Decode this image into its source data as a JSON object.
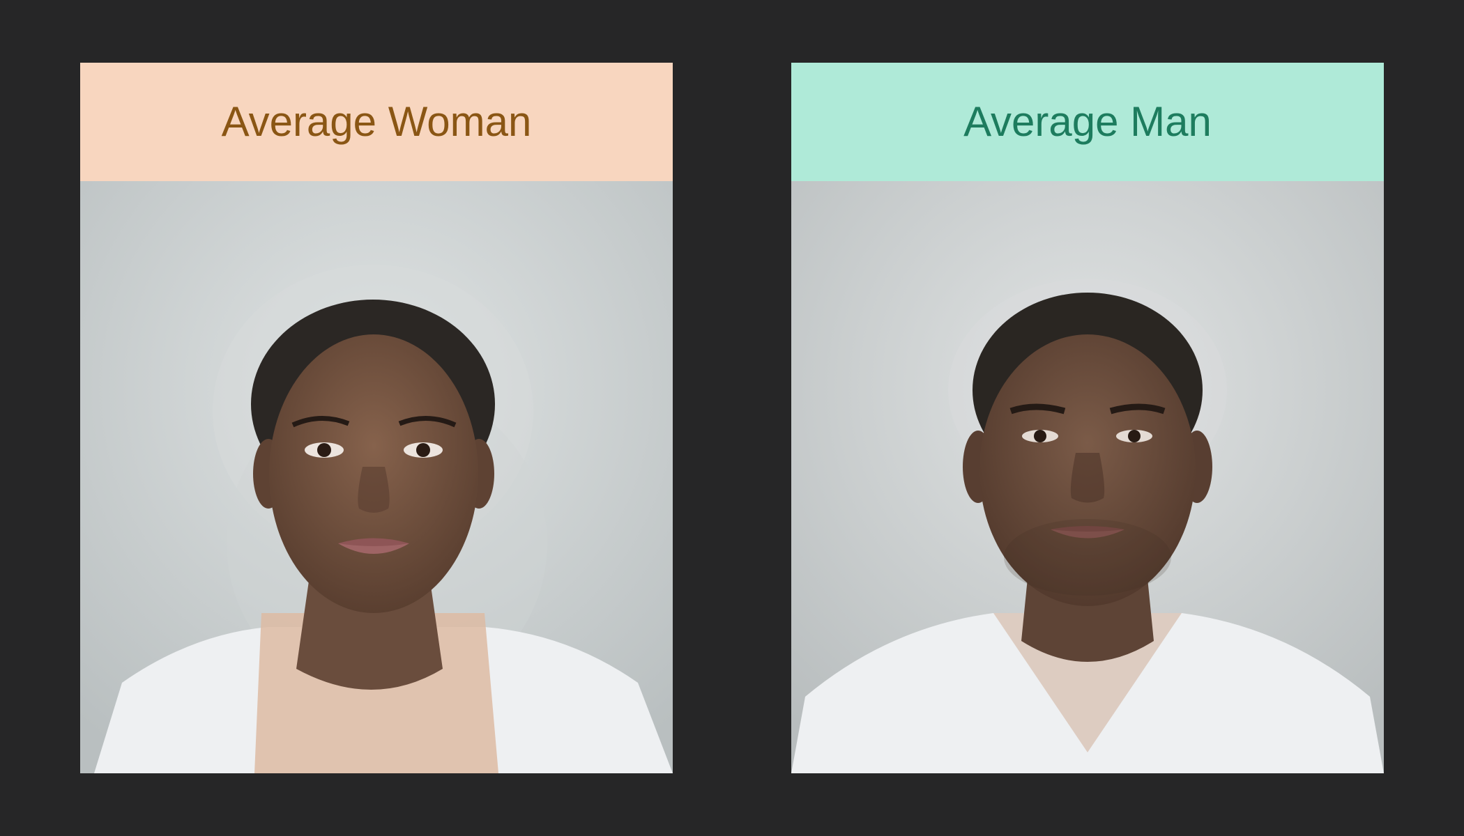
{
  "panels": [
    {
      "title": "Average Woman",
      "header_bg": "#f8d6bf",
      "title_color": "#8a5614",
      "photo_icon": "average-woman-face-portrait"
    },
    {
      "title": "Average Man",
      "header_bg": "#afead8",
      "title_color": "#1d7c5e",
      "photo_icon": "average-man-face-portrait"
    }
  ],
  "colors": {
    "page_bg": "#262627",
    "photo_bg": "#c9cfd0",
    "skin": "#6e5141",
    "hair": "#2b2724",
    "shirt": "#eef0f2"
  }
}
